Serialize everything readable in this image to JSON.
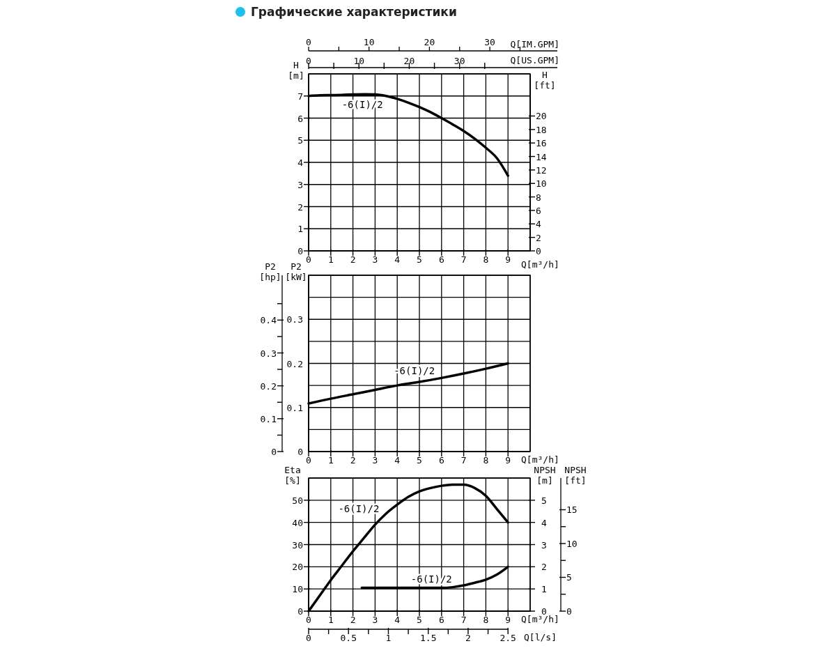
{
  "chart_data": [
    {
      "type": "line",
      "title": "Графические характеристики",
      "xlabel": "Q[m³/h]",
      "x2label": "Q[US.GPM]",
      "ylabel": "H [m]",
      "y2label": "H [ft]",
      "annotations": [
        "0",
        "10",
        "20",
        "30",
        "Q[IM.GPM]"
      ],
      "xlim": [
        0,
        10
      ],
      "xticks": [
        0,
        1,
        2,
        3,
        4,
        5,
        6,
        7,
        8,
        9
      ],
      "x2lim": [
        0,
        44.03
      ],
      "x2ticks": [
        0,
        {
          "value": 5,
          "label": null
        },
        10,
        {
          "value": 15,
          "label": null
        },
        20,
        {
          "value": 25,
          "label": null
        },
        30,
        {
          "value": 35,
          "label": null
        }
      ],
      "ylim": [
        0,
        8
      ],
      "yticks": [
        0,
        1,
        2,
        3,
        4,
        5,
        6,
        7
      ],
      "y2lim": [
        0,
        26.25
      ],
      "y2ticks": [
        0,
        2,
        4,
        6,
        8,
        10,
        12,
        14,
        16,
        18,
        20
      ],
      "grid": true,
      "series": [
        {
          "name": "-6(I)/2",
          "color": "#000000",
          "x": [
            0,
            0.5,
            1,
            1.5,
            2,
            2.5,
            3,
            3.5,
            4,
            4.5,
            5,
            5.5,
            6,
            6.5,
            7,
            7.5,
            8,
            8.5,
            9
          ],
          "values": [
            7.0,
            7.03,
            7.04,
            7.05,
            7.07,
            7.08,
            7.07,
            7.0,
            6.87,
            6.7,
            6.5,
            6.27,
            6.0,
            5.72,
            5.42,
            5.07,
            4.66,
            4.19,
            3.4
          ]
        }
      ]
    },
    {
      "type": "line",
      "xlabel": "Q[m³/h]",
      "ylabel": "P2 [kW]",
      "y2label": "P2 [hp]",
      "xlim": [
        0,
        10
      ],
      "xticks": [
        0,
        1,
        2,
        3,
        4,
        5,
        6,
        7,
        8,
        9
      ],
      "ylim": [
        0,
        0.4
      ],
      "yticks": [
        0,
        0.1,
        0.2,
        0.3
      ],
      "y2lim": [
        0,
        0.5364
      ],
      "y2ticks": [
        0,
        0.1,
        0.2,
        0.3,
        0.4
      ],
      "grid": true,
      "series": [
        {
          "name": "-6(I)/2",
          "color": "#000000",
          "x": [
            0,
            1,
            2,
            3,
            4,
            5,
            6,
            7,
            8,
            9
          ],
          "values": [
            0.109,
            0.12,
            0.13,
            0.14,
            0.15,
            0.158,
            0.167,
            0.177,
            0.188,
            0.2
          ]
        }
      ]
    },
    {
      "type": "line",
      "xlabel": "Q[m³/h]",
      "x2label": "Q[l/s]",
      "ylabel": "Eta [%]",
      "y2label": "NPSH [m]",
      "y3label": "NPSH [ft]",
      "xlim": [
        0,
        10
      ],
      "xticks": [
        0,
        1,
        2,
        3,
        4,
        5,
        6,
        7,
        8,
        9
      ],
      "x2lim": [
        0,
        2.778
      ],
      "x2ticks": [
        0,
        0.5,
        1,
        1.5,
        2,
        2.5
      ],
      "ylim": [
        0,
        60
      ],
      "yticks": [
        0,
        10,
        20,
        30,
        40,
        50
      ],
      "y2lim": [
        0,
        6
      ],
      "y2ticks": [
        0,
        1,
        2,
        3,
        4,
        5
      ],
      "y3lim": [
        0,
        19.69
      ],
      "y3ticks": [
        0,
        5,
        10,
        15
      ],
      "grid": true,
      "series": [
        {
          "name": "-6(I)/2",
          "color": "#000000",
          "x": [
            0,
            0.5,
            1,
            1.5,
            2,
            2.5,
            3,
            3.5,
            4,
            4.5,
            5,
            5.5,
            6,
            6.5,
            7,
            7.5,
            8,
            8.5,
            9
          ],
          "values": [
            0,
            7,
            14,
            20.5,
            27,
            33,
            39,
            44,
            48,
            51.5,
            54,
            55.5,
            56.5,
            57,
            57,
            55.5,
            52,
            46,
            40
          ]
        },
        {
          "name": "-6(I)/2",
          "color": "#000000",
          "axis": "y2",
          "x": [
            2.4,
            3,
            4,
            5,
            6,
            6.5,
            7,
            7.5,
            8,
            8.5,
            9
          ],
          "values": [
            1.05,
            1.05,
            1.05,
            1.05,
            1.05,
            1.08,
            1.16,
            1.28,
            1.42,
            1.65,
            2.0
          ]
        }
      ]
    }
  ]
}
